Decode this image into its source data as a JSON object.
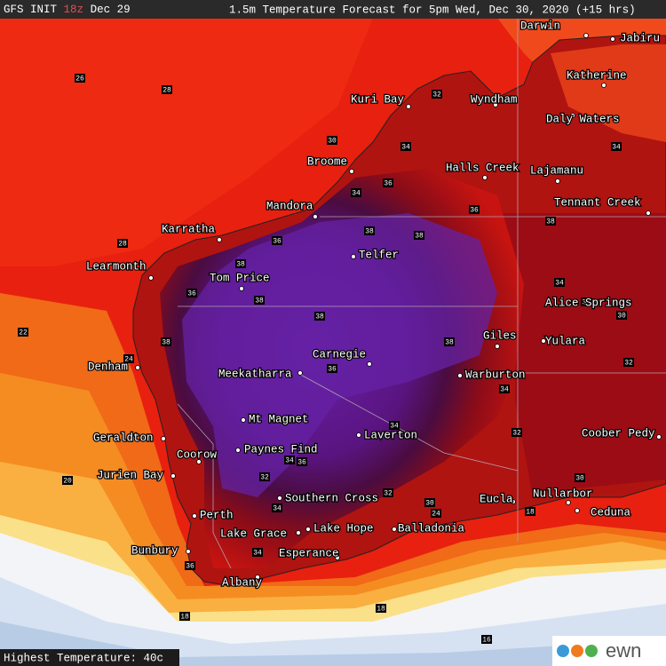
{
  "header": {
    "init": "GFS INIT",
    "run": "18z",
    "date": "Dec 29",
    "title": "1.5m Temperature Forecast for 5pm Wed, Dec 30, 2020 (+15 hrs)"
  },
  "footer": "Highest Temperature: 40c",
  "logo": "ewn",
  "towns": [
    "Darwin",
    "Jabiru",
    "Katherine",
    "Kuri Bay",
    "Wyndham",
    "Daly Waters",
    "Broome",
    "Halls Creek",
    "Lajamanu",
    "Tennant Creek",
    "Mandora",
    "Karratha",
    "Telfer",
    "Learmonth",
    "Tom Price",
    "Alice Springs",
    "Giles",
    "Yulara",
    "Carnegie",
    "Denham",
    "Meekatharra",
    "Warburton",
    "Mt Magnet",
    "Laverton",
    "Geraldton",
    "Coober Pedy",
    "Paynes Find",
    "Coorow",
    "Jurien Bay",
    "Southern Cross",
    "Eucla",
    "Nullarbor",
    "Ceduna",
    "Perth",
    "Lake Grace",
    "Lake Hope",
    "Balladonia",
    "Bunbury",
    "Esperance",
    "Albany"
  ],
  "contour_labels": [
    26,
    28,
    30,
    32,
    34,
    36,
    34,
    38,
    38,
    36,
    38,
    36,
    38,
    36,
    38,
    38,
    38,
    38,
    36,
    34,
    34,
    32,
    34,
    36,
    32,
    32,
    34,
    30,
    24,
    28,
    24,
    22,
    20,
    18,
    18,
    18,
    16,
    34,
    32,
    30,
    32,
    34,
    30,
    36,
    34
  ]
}
